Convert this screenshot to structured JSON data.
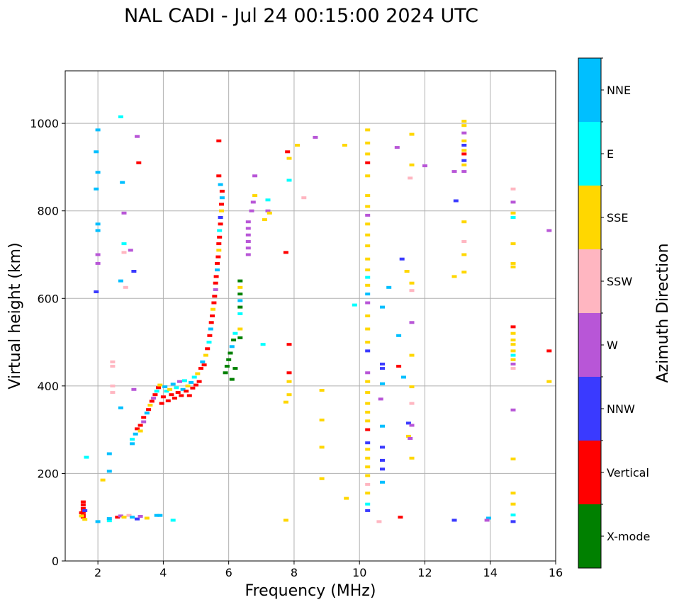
{
  "chart_data": {
    "type": "scatter",
    "title": "NAL CADI - Jul 24 00:15:00 2024 UTC",
    "xlabel": "Frequency (MHz)",
    "ylabel": "Virtual height (km)",
    "xlim": [
      1.0,
      16.0
    ],
    "ylim": [
      0,
      1120
    ],
    "xticks": [
      2,
      4,
      6,
      8,
      10,
      12,
      14,
      16
    ],
    "yticks": [
      0,
      200,
      400,
      600,
      800,
      1000
    ],
    "grid": true,
    "colorbar": {
      "title": "Azimuth Direction",
      "categories": [
        {
          "label": "X-mode",
          "color": "#008000"
        },
        {
          "label": "Vertical",
          "color": "#ff0000"
        },
        {
          "label": "NNW",
          "color": "#3a3aff"
        },
        {
          "label": "W",
          "color": "#b856d7"
        },
        {
          "label": "SSW",
          "color": "#ffb6c1"
        },
        {
          "label": "SSE",
          "color": "#ffd700"
        },
        {
          "label": "E",
          "color": "#00ffff"
        },
        {
          "label": "NNE",
          "color": "#00bfff"
        }
      ]
    },
    "points": [
      [
        1.55,
        135,
        "Vertical"
      ],
      [
        1.55,
        128,
        "Vertical"
      ],
      [
        1.55,
        120,
        "Vertical"
      ],
      [
        1.55,
        113,
        "Vertical"
      ],
      [
        1.55,
        106,
        "Vertical"
      ],
      [
        1.55,
        100,
        "Vertical"
      ],
      [
        1.6,
        95,
        "SSE"
      ],
      [
        1.5,
        103,
        "SSE"
      ],
      [
        1.5,
        110,
        "Vertical"
      ],
      [
        1.6,
        115,
        "NNW"
      ],
      [
        2.0,
        90,
        "NNE"
      ],
      [
        2.35,
        92,
        "E"
      ],
      [
        2.35,
        97,
        "NNE"
      ],
      [
        2.6,
        100,
        "Vertical"
      ],
      [
        2.7,
        103,
        "W"
      ],
      [
        2.8,
        100,
        "SSE"
      ],
      [
        2.95,
        104,
        "SSW"
      ],
      [
        3.05,
        100,
        "NNE"
      ],
      [
        3.2,
        96,
        "NNW"
      ],
      [
        3.3,
        102,
        "W"
      ],
      [
        3.5,
        98,
        "SSE"
      ],
      [
        3.8,
        104,
        "NNE"
      ],
      [
        3.9,
        104,
        "NNE"
      ],
      [
        4.3,
        93,
        "E"
      ],
      [
        3.05,
        268,
        "NNE"
      ],
      [
        3.05,
        278,
        "E"
      ],
      [
        3.15,
        290,
        "NNE"
      ],
      [
        3.2,
        302,
        "Vertical"
      ],
      [
        3.3,
        297,
        "SSE"
      ],
      [
        3.3,
        310,
        "Vertical"
      ],
      [
        3.4,
        318,
        "W"
      ],
      [
        3.4,
        328,
        "Vertical"
      ],
      [
        3.5,
        338,
        "NNE"
      ],
      [
        3.55,
        346,
        "Vertical"
      ],
      [
        3.6,
        356,
        "SSE"
      ],
      [
        3.65,
        365,
        "Vertical"
      ],
      [
        3.7,
        372,
        "W"
      ],
      [
        3.75,
        380,
        "Vertical"
      ],
      [
        3.8,
        388,
        "E"
      ],
      [
        3.85,
        396,
        "Vertical"
      ],
      [
        3.9,
        402,
        "SSE"
      ],
      [
        3.95,
        360,
        "Vertical"
      ],
      [
        4.0,
        375,
        "Vertical"
      ],
      [
        4.05,
        398,
        "NNE"
      ],
      [
        4.1,
        388,
        "E"
      ],
      [
        4.15,
        366,
        "Vertical"
      ],
      [
        4.2,
        392,
        "SSE"
      ],
      [
        4.25,
        380,
        "Vertical"
      ],
      [
        4.3,
        404,
        "NNE"
      ],
      [
        4.35,
        372,
        "Vertical"
      ],
      [
        4.4,
        396,
        "E"
      ],
      [
        4.45,
        385,
        "Vertical"
      ],
      [
        4.5,
        410,
        "W"
      ],
      [
        4.55,
        378,
        "Vertical"
      ],
      [
        4.6,
        392,
        "NNE"
      ],
      [
        4.65,
        412,
        "E"
      ],
      [
        4.7,
        388,
        "Vertical"
      ],
      [
        4.75,
        400,
        "SSE"
      ],
      [
        4.8,
        378,
        "Vertical"
      ],
      [
        4.85,
        408,
        "NNE"
      ],
      [
        4.9,
        395,
        "Vertical"
      ],
      [
        4.95,
        420,
        "E"
      ],
      [
        5.0,
        402,
        "Vertical"
      ],
      [
        5.05,
        428,
        "SSE"
      ],
      [
        5.1,
        410,
        "Vertical"
      ],
      [
        5.15,
        440,
        "Vertical"
      ],
      [
        5.2,
        455,
        "NNE"
      ],
      [
        5.25,
        448,
        "Vertical"
      ],
      [
        5.3,
        470,
        "SSE"
      ],
      [
        5.35,
        485,
        "Vertical"
      ],
      [
        5.4,
        500,
        "E"
      ],
      [
        5.42,
        515,
        "Vertical"
      ],
      [
        5.45,
        530,
        "NNE"
      ],
      [
        5.47,
        545,
        "Vertical"
      ],
      [
        5.5,
        560,
        "Vertical"
      ],
      [
        5.52,
        575,
        "SSE"
      ],
      [
        5.55,
        590,
        "Vertical"
      ],
      [
        5.57,
        605,
        "Vertical"
      ],
      [
        5.6,
        620,
        "W"
      ],
      [
        5.6,
        635,
        "Vertical"
      ],
      [
        5.62,
        650,
        "Vertical"
      ],
      [
        5.65,
        665,
        "NNE"
      ],
      [
        5.65,
        680,
        "Vertical"
      ],
      [
        5.68,
        695,
        "Vertical"
      ],
      [
        5.7,
        710,
        "SSE"
      ],
      [
        5.7,
        725,
        "Vertical"
      ],
      [
        5.72,
        740,
        "Vertical"
      ],
      [
        5.72,
        755,
        "E"
      ],
      [
        5.75,
        770,
        "Vertical"
      ],
      [
        5.75,
        785,
        "NNW"
      ],
      [
        5.78,
        800,
        "SSE"
      ],
      [
        5.78,
        815,
        "Vertical"
      ],
      [
        5.8,
        830,
        "NNE"
      ],
      [
        5.8,
        845,
        "Vertical"
      ],
      [
        5.7,
        880,
        "Vertical"
      ],
      [
        5.75,
        860,
        "NNE"
      ],
      [
        5.7,
        960,
        "Vertical"
      ],
      [
        5.9,
        430,
        "X-mode"
      ],
      [
        5.95,
        445,
        "X-mode"
      ],
      [
        6.0,
        460,
        "X-mode"
      ],
      [
        6.05,
        475,
        "X-mode"
      ],
      [
        6.1,
        490,
        "NNE"
      ],
      [
        6.15,
        505,
        "X-mode"
      ],
      [
        6.2,
        520,
        "E"
      ],
      [
        6.2,
        440,
        "X-mode"
      ],
      [
        6.1,
        415,
        "X-mode"
      ],
      [
        6.35,
        640,
        "X-mode"
      ],
      [
        6.35,
        625,
        "SSE"
      ],
      [
        6.35,
        610,
        "X-mode"
      ],
      [
        6.35,
        595,
        "NNE"
      ],
      [
        6.35,
        580,
        "X-mode"
      ],
      [
        6.35,
        565,
        "E"
      ],
      [
        6.35,
        510,
        "X-mode"
      ],
      [
        6.35,
        530,
        "SSE"
      ],
      [
        6.6,
        700,
        "W"
      ],
      [
        6.6,
        715,
        "W"
      ],
      [
        6.6,
        730,
        "W"
      ],
      [
        6.6,
        745,
        "W"
      ],
      [
        6.6,
        760,
        "W"
      ],
      [
        6.6,
        775,
        "W"
      ],
      [
        6.7,
        800,
        "W"
      ],
      [
        6.75,
        820,
        "W"
      ],
      [
        6.8,
        835,
        "SSE"
      ],
      [
        6.8,
        880,
        "W"
      ],
      [
        7.1,
        780,
        "SSE"
      ],
      [
        7.2,
        800,
        "W"
      ],
      [
        7.25,
        795,
        "SSE"
      ],
      [
        7.2,
        825,
        "E"
      ],
      [
        2.0,
        985,
        "NNE"
      ],
      [
        1.95,
        935,
        "NNE"
      ],
      [
        2.0,
        888,
        "NNE"
      ],
      [
        1.95,
        850,
        "NNE"
      ],
      [
        2.0,
        770,
        "NNE"
      ],
      [
        2.0,
        755,
        "NNE"
      ],
      [
        1.95,
        615,
        "NNW"
      ],
      [
        2.0,
        700,
        "W"
      ],
      [
        2.0,
        680,
        "W"
      ],
      [
        2.8,
        725,
        "E"
      ],
      [
        2.8,
        705,
        "SSW"
      ],
      [
        2.7,
        640,
        "NNE"
      ],
      [
        2.85,
        625,
        "SSW"
      ],
      [
        3.1,
        662,
        "NNW"
      ],
      [
        3.0,
        710,
        "W"
      ],
      [
        3.25,
        910,
        "Vertical"
      ],
      [
        3.2,
        970,
        "W"
      ],
      [
        2.7,
        1015,
        "E"
      ],
      [
        2.75,
        865,
        "NNE"
      ],
      [
        2.8,
        795,
        "W"
      ],
      [
        2.45,
        455,
        "SSW"
      ],
      [
        2.45,
        445,
        "SSW"
      ],
      [
        2.45,
        400,
        "SSW"
      ],
      [
        2.45,
        385,
        "SSW"
      ],
      [
        2.7,
        350,
        "NNE"
      ],
      [
        3.1,
        392,
        "W"
      ],
      [
        2.35,
        245,
        "NNE"
      ],
      [
        2.35,
        205,
        "NNE"
      ],
      [
        2.15,
        185,
        "SSE"
      ],
      [
        1.65,
        237,
        "E"
      ],
      [
        7.8,
        935,
        "Vertical"
      ],
      [
        7.85,
        920,
        "SSE"
      ],
      [
        7.85,
        870,
        "E"
      ],
      [
        7.75,
        705,
        "Vertical"
      ],
      [
        7.85,
        495,
        "Vertical"
      ],
      [
        7.85,
        430,
        "Vertical"
      ],
      [
        7.85,
        410,
        "SSE"
      ],
      [
        7.85,
        380,
        "SSE"
      ],
      [
        7.75,
        363,
        "SSE"
      ],
      [
        7.75,
        93,
        "SSE"
      ],
      [
        7.05,
        495,
        "E"
      ],
      [
        8.1,
        950,
        "SSE"
      ],
      [
        8.3,
        830,
        "SSW"
      ],
      [
        8.65,
        968,
        "W"
      ],
      [
        8.85,
        390,
        "SSE"
      ],
      [
        8.85,
        322,
        "SSE"
      ],
      [
        8.85,
        260,
        "SSE"
      ],
      [
        8.85,
        188,
        "SSE"
      ],
      [
        9.55,
        950,
        "SSE"
      ],
      [
        9.6,
        143,
        "SSE"
      ],
      [
        9.85,
        585,
        "E"
      ],
      [
        10.25,
        985,
        "SSE"
      ],
      [
        10.25,
        955,
        "SSE"
      ],
      [
        10.25,
        930,
        "SSE"
      ],
      [
        10.25,
        910,
        "Vertical"
      ],
      [
        10.25,
        880,
        "SSE"
      ],
      [
        10.25,
        835,
        "SSE"
      ],
      [
        10.25,
        810,
        "SSE"
      ],
      [
        10.25,
        790,
        "W"
      ],
      [
        10.25,
        770,
        "SSE"
      ],
      [
        10.25,
        745,
        "SSE"
      ],
      [
        10.25,
        720,
        "SSE"
      ],
      [
        10.25,
        690,
        "SSE"
      ],
      [
        10.25,
        665,
        "SSE"
      ],
      [
        10.25,
        648,
        "E"
      ],
      [
        10.25,
        630,
        "SSE"
      ],
      [
        10.25,
        610,
        "NNE"
      ],
      [
        10.25,
        590,
        "W"
      ],
      [
        10.25,
        560,
        "SSE"
      ],
      [
        10.25,
        530,
        "SSE"
      ],
      [
        10.25,
        500,
        "SSE"
      ],
      [
        10.25,
        480,
        "NNW"
      ],
      [
        10.25,
        430,
        "W"
      ],
      [
        10.25,
        410,
        "SSE"
      ],
      [
        10.25,
        385,
        "SSE"
      ],
      [
        10.25,
        360,
        "SSE"
      ],
      [
        10.25,
        340,
        "SSE"
      ],
      [
        10.25,
        320,
        "SSE"
      ],
      [
        10.25,
        300,
        "Vertical"
      ],
      [
        10.25,
        270,
        "NNW"
      ],
      [
        10.25,
        255,
        "SSE"
      ],
      [
        10.25,
        235,
        "SSE"
      ],
      [
        10.25,
        215,
        "SSE"
      ],
      [
        10.25,
        195,
        "SSE"
      ],
      [
        10.25,
        175,
        "SSW"
      ],
      [
        10.25,
        155,
        "SSE"
      ],
      [
        10.25,
        130,
        "E"
      ],
      [
        10.25,
        115,
        "NNW"
      ],
      [
        10.7,
        580,
        "NNE"
      ],
      [
        10.9,
        625,
        "NNE"
      ],
      [
        10.7,
        450,
        "NNW"
      ],
      [
        10.7,
        440,
        "NNW"
      ],
      [
        10.7,
        405,
        "NNE"
      ],
      [
        10.65,
        370,
        "W"
      ],
      [
        10.7,
        308,
        "NNE"
      ],
      [
        10.7,
        260,
        "NNW"
      ],
      [
        10.7,
        230,
        "NNW"
      ],
      [
        10.7,
        210,
        "NNW"
      ],
      [
        10.7,
        180,
        "NNE"
      ],
      [
        10.6,
        90,
        "SSW"
      ],
      [
        11.15,
        945,
        "W"
      ],
      [
        11.3,
        690,
        "NNW"
      ],
      [
        11.2,
        515,
        "NNE"
      ],
      [
        11.2,
        445,
        "Vertical"
      ],
      [
        11.35,
        420,
        "NNE"
      ],
      [
        11.25,
        100,
        "Vertical"
      ],
      [
        11.5,
        315,
        "NNW"
      ],
      [
        11.5,
        285,
        "SSE"
      ],
      [
        11.55,
        280,
        "W"
      ],
      [
        11.6,
        975,
        "SSE"
      ],
      [
        11.6,
        905,
        "SSE"
      ],
      [
        11.55,
        875,
        "SSW"
      ],
      [
        11.6,
        635,
        "SSE"
      ],
      [
        11.6,
        618,
        "SSW"
      ],
      [
        11.6,
        545,
        "W"
      ],
      [
        11.6,
        470,
        "SSE"
      ],
      [
        11.6,
        398,
        "SSE"
      ],
      [
        11.6,
        360,
        "SSW"
      ],
      [
        11.6,
        310,
        "W"
      ],
      [
        11.6,
        235,
        "SSE"
      ],
      [
        11.45,
        662,
        "SSE"
      ],
      [
        12.0,
        903,
        "W"
      ],
      [
        12.9,
        890,
        "W"
      ],
      [
        12.95,
        823,
        "NNW"
      ],
      [
        12.9,
        650,
        "SSE"
      ],
      [
        12.9,
        93,
        "NNW"
      ],
      [
        13.2,
        1005,
        "SSE"
      ],
      [
        13.2,
        995,
        "SSE"
      ],
      [
        13.2,
        978,
        "W"
      ],
      [
        13.2,
        960,
        "SSE"
      ],
      [
        13.2,
        950,
        "NNW"
      ],
      [
        13.2,
        938,
        "SSE"
      ],
      [
        13.2,
        930,
        "Vertical"
      ],
      [
        13.2,
        915,
        "NNW"
      ],
      [
        13.2,
        905,
        "SSE"
      ],
      [
        13.2,
        890,
        "W"
      ],
      [
        13.2,
        775,
        "SSE"
      ],
      [
        13.2,
        730,
        "SSW"
      ],
      [
        13.2,
        700,
        "SSE"
      ],
      [
        13.2,
        660,
        "SSE"
      ],
      [
        13.95,
        98,
        "NNE"
      ],
      [
        13.9,
        93,
        "W"
      ],
      [
        14.7,
        850,
        "SSW"
      ],
      [
        14.7,
        820,
        "W"
      ],
      [
        14.7,
        795,
        "SSE"
      ],
      [
        14.7,
        785,
        "E"
      ],
      [
        14.7,
        725,
        "SSE"
      ],
      [
        14.7,
        680,
        "SSE"
      ],
      [
        14.7,
        672,
        "SSE"
      ],
      [
        14.7,
        535,
        "Vertical"
      ],
      [
        14.7,
        520,
        "SSE"
      ],
      [
        14.7,
        505,
        "SSE"
      ],
      [
        14.7,
        495,
        "SSE"
      ],
      [
        14.7,
        480,
        "SSE"
      ],
      [
        14.7,
        470,
        "E"
      ],
      [
        14.7,
        460,
        "SSE"
      ],
      [
        14.7,
        450,
        "W"
      ],
      [
        14.7,
        440,
        "SSW"
      ],
      [
        14.7,
        345,
        "W"
      ],
      [
        14.7,
        233,
        "SSE"
      ],
      [
        14.7,
        155,
        "SSE"
      ],
      [
        14.7,
        130,
        "SSE"
      ],
      [
        14.7,
        105,
        "E"
      ],
      [
        14.7,
        90,
        "NNW"
      ],
      [
        15.8,
        755,
        "W"
      ],
      [
        15.8,
        480,
        "Vertical"
      ],
      [
        15.8,
        410,
        "SSE"
      ]
    ]
  }
}
